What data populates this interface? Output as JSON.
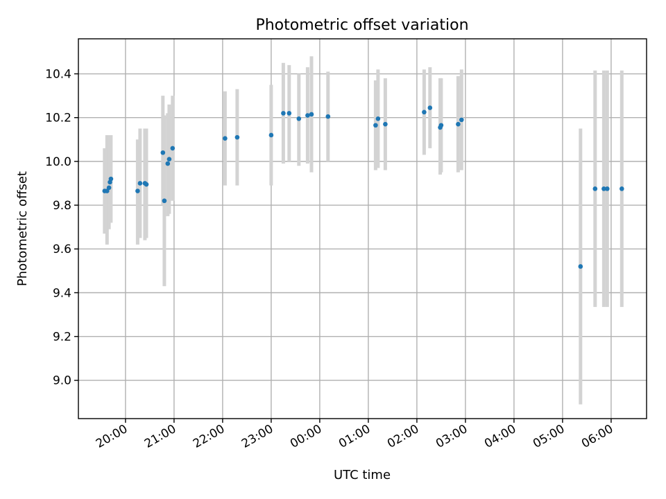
{
  "chart_data": {
    "type": "scatter",
    "title": "Photometric offset variation",
    "xlabel": "UTC time",
    "ylabel": "Photometric offset",
    "grid": true,
    "x_tick_labels": [
      "20:00",
      "21:00",
      "22:00",
      "23:00",
      "00:00",
      "01:00",
      "02:00",
      "03:00",
      "04:00",
      "05:00",
      "06:00"
    ],
    "x_tick_hours": [
      20,
      21,
      22,
      23,
      24,
      25,
      26,
      27,
      28,
      29,
      30
    ],
    "xlim_hours": [
      19.03,
      30.73
    ],
    "y_ticks": [
      9.0,
      9.2,
      9.4,
      9.6,
      9.8,
      10.0,
      10.2,
      10.4
    ],
    "y_tick_labels": [
      "9.0",
      "9.2",
      "9.4",
      "9.6",
      "9.8",
      "10.0",
      "10.2",
      "10.4"
    ],
    "ylim": [
      8.825,
      10.56
    ],
    "x_units": "hours (UTC, >24 = next day)",
    "points": [
      {
        "x": 19.57,
        "y": 9.865,
        "err_low": 9.67,
        "err_high": 10.06
      },
      {
        "x": 19.62,
        "y": 9.865,
        "err_low": 9.62,
        "err_high": 10.12
      },
      {
        "x": 19.66,
        "y": 9.88,
        "err_low": 9.69,
        "err_high": 10.12
      },
      {
        "x": 19.68,
        "y": 9.905,
        "err_low": 9.72,
        "err_high": 10.1
      },
      {
        "x": 19.7,
        "y": 9.92,
        "err_low": 9.72,
        "err_high": 10.12
      },
      {
        "x": 20.25,
        "y": 9.865,
        "err_low": 9.62,
        "err_high": 10.1
      },
      {
        "x": 20.3,
        "y": 9.9,
        "err_low": 9.65,
        "err_high": 10.15
      },
      {
        "x": 20.4,
        "y": 9.9,
        "err_low": 9.64,
        "err_high": 10.15
      },
      {
        "x": 20.43,
        "y": 9.895,
        "err_low": 9.65,
        "err_high": 10.15
      },
      {
        "x": 20.77,
        "y": 10.04,
        "err_low": 9.8,
        "err_high": 10.3
      },
      {
        "x": 20.8,
        "y": 9.82,
        "err_low": 9.43,
        "err_high": 10.21
      },
      {
        "x": 20.87,
        "y": 9.99,
        "err_low": 9.75,
        "err_high": 10.22
      },
      {
        "x": 20.9,
        "y": 10.01,
        "err_low": 9.76,
        "err_high": 10.26
      },
      {
        "x": 20.97,
        "y": 10.06,
        "err_low": 9.82,
        "err_high": 10.3
      },
      {
        "x": 22.05,
        "y": 10.105,
        "err_low": 9.89,
        "err_high": 10.32
      },
      {
        "x": 22.3,
        "y": 10.11,
        "err_low": 9.89,
        "err_high": 10.33
      },
      {
        "x": 23.0,
        "y": 10.12,
        "err_low": 9.89,
        "err_high": 10.35
      },
      {
        "x": 23.25,
        "y": 10.22,
        "err_low": 9.99,
        "err_high": 10.45
      },
      {
        "x": 23.37,
        "y": 10.22,
        "err_low": 10.0,
        "err_high": 10.44
      },
      {
        "x": 23.57,
        "y": 10.195,
        "err_low": 9.98,
        "err_high": 10.4
      },
      {
        "x": 23.75,
        "y": 10.21,
        "err_low": 9.99,
        "err_high": 10.43
      },
      {
        "x": 23.83,
        "y": 10.215,
        "err_low": 9.95,
        "err_high": 10.48
      },
      {
        "x": 24.17,
        "y": 10.205,
        "err_low": 10.0,
        "err_high": 10.41
      },
      {
        "x": 25.15,
        "y": 10.165,
        "err_low": 9.96,
        "err_high": 10.37
      },
      {
        "x": 25.2,
        "y": 10.195,
        "err_low": 9.97,
        "err_high": 10.42
      },
      {
        "x": 25.35,
        "y": 10.17,
        "err_low": 9.96,
        "err_high": 10.38
      },
      {
        "x": 26.15,
        "y": 10.225,
        "err_low": 10.03,
        "err_high": 10.42
      },
      {
        "x": 26.27,
        "y": 10.245,
        "err_low": 10.06,
        "err_high": 10.43
      },
      {
        "x": 26.48,
        "y": 10.155,
        "err_low": 9.94,
        "err_high": 10.38
      },
      {
        "x": 26.5,
        "y": 10.165,
        "err_low": 9.95,
        "err_high": 10.38
      },
      {
        "x": 26.85,
        "y": 10.17,
        "err_low": 9.95,
        "err_high": 10.39
      },
      {
        "x": 26.92,
        "y": 10.19,
        "err_low": 9.96,
        "err_high": 10.42
      },
      {
        "x": 29.37,
        "y": 9.52,
        "err_low": 8.89,
        "err_high": 10.15
      },
      {
        "x": 29.67,
        "y": 9.875,
        "err_low": 9.335,
        "err_high": 10.415
      },
      {
        "x": 29.85,
        "y": 9.875,
        "err_low": 9.335,
        "err_high": 10.415
      },
      {
        "x": 29.92,
        "y": 9.875,
        "err_low": 9.335,
        "err_high": 10.415
      },
      {
        "x": 30.22,
        "y": 9.875,
        "err_low": 9.335,
        "err_high": 10.415
      }
    ],
    "colors": {
      "point": "#1f77b4",
      "errorbar": "#d3d3d3",
      "grid": "#b0b0b0"
    }
  }
}
